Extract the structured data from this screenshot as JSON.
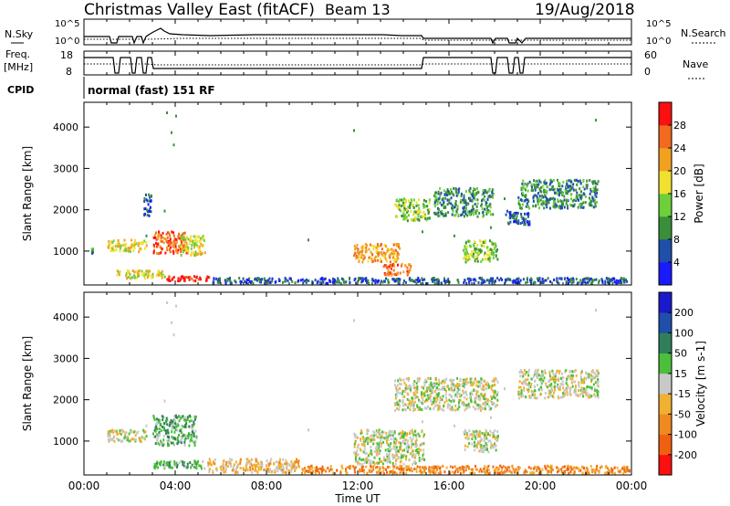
{
  "header": {
    "station": "Christmas Valley East (fitACF)",
    "beam": "Beam 13",
    "date": "19/Aug/2018"
  },
  "colors": {
    "bg": "#ffffff",
    "axis": "#000000"
  },
  "chart_data": [
    {
      "type": "line",
      "panel": "noise-sky",
      "ylabel": [
        "N.Sky",
        "N.Search"
      ],
      "y_ticks_left": [
        "10^5",
        "10^0"
      ],
      "y_ticks_right": [
        "10^5",
        "10^0"
      ],
      "xlim": [
        0,
        24
      ],
      "series": [
        {
          "name": "N.Sky",
          "style": "solid"
        },
        {
          "name": "N.Search",
          "style": "dotted"
        }
      ]
    },
    {
      "type": "line",
      "panel": "frequency-nave",
      "ylabel": [
        "Freq.",
        "[MHz]"
      ],
      "ylabel_right": "Nave",
      "y_ticks_left": [
        "18",
        "8"
      ],
      "y_ticks_right": [
        "60",
        "0"
      ],
      "xlim": [
        0,
        24
      ],
      "series": [
        {
          "name": "Freq.",
          "style": "solid"
        },
        {
          "name": "Nave",
          "style": "dotted"
        }
      ]
    },
    {
      "type": "table",
      "panel": "cpid",
      "label": "CPID",
      "value": "normal (fast) 151 RF"
    },
    {
      "type": "heatmap",
      "panel": "power",
      "xlabel": "Time UT",
      "ylabel": "Slant Range [km]",
      "xlim": [
        0,
        24
      ],
      "ylim": [
        180,
        4600
      ],
      "x_ticks": [
        "00:00",
        "04:00",
        "08:00",
        "12:00",
        "16:00",
        "20:00",
        "00:00"
      ],
      "y_ticks": [
        1000,
        2000,
        3000,
        4000
      ],
      "colorbar": {
        "label": "Power [dB]",
        "ticks": [
          "4",
          "8",
          "12",
          "16",
          "20",
          "24",
          "28"
        ],
        "colors": [
          "#1a1aff",
          "#1f4faa",
          "#3a8f3a",
          "#6dcf3a",
          "#f0e030",
          "#f2a020",
          "#f26a20",
          "#ff1010"
        ]
      },
      "regions": [
        {
          "t": [
            0.3,
            0.45
          ],
          "r": [
            900,
            1100
          ],
          "level": 2
        },
        {
          "t": [
            1.0,
            2.8
          ],
          "r": [
            950,
            1300
          ],
          "level": 4
        },
        {
          "t": [
            3.0,
            4.6
          ],
          "r": [
            900,
            1500
          ],
          "level": 6
        },
        {
          "t": [
            4.2,
            5.4
          ],
          "r": [
            850,
            1400
          ],
          "level": 4
        },
        {
          "t": [
            1.4,
            3.6
          ],
          "r": [
            300,
            560
          ],
          "level": 4
        },
        {
          "t": [
            3.6,
            5.6
          ],
          "r": [
            240,
            420
          ],
          "level": 7
        },
        {
          "t": [
            5.6,
            24.0
          ],
          "r": [
            180,
            380
          ],
          "level": 1
        },
        {
          "t": [
            11.8,
            13.9
          ],
          "r": [
            700,
            1200
          ],
          "level": 5
        },
        {
          "t": [
            13.1,
            14.4
          ],
          "r": [
            380,
            720
          ],
          "level": 6
        },
        {
          "t": [
            13.6,
            15.2
          ],
          "r": [
            1700,
            2300
          ],
          "level": 3
        },
        {
          "t": [
            15.3,
            18.0
          ],
          "r": [
            1800,
            2550
          ],
          "level": 2
        },
        {
          "t": [
            16.6,
            18.2
          ],
          "r": [
            700,
            1300
          ],
          "level": 3
        },
        {
          "t": [
            19.0,
            22.6
          ],
          "r": [
            2000,
            2750
          ],
          "level": 2
        },
        {
          "t": [
            18.4,
            19.6
          ],
          "r": [
            1600,
            2000
          ],
          "level": 1
        },
        {
          "t": [
            2.6,
            3.0
          ],
          "r": [
            1800,
            2400
          ],
          "level": 1
        }
      ]
    },
    {
      "type": "heatmap",
      "panel": "velocity",
      "xlabel": "Time UT",
      "ylabel": "Slant Range [km]",
      "xlim": [
        0,
        24
      ],
      "ylim": [
        180,
        4600
      ],
      "x_ticks": [
        "00:00",
        "04:00",
        "08:00",
        "12:00",
        "16:00",
        "20:00",
        "00:00"
      ],
      "y_ticks": [
        1000,
        2000,
        3000,
        4000
      ],
      "colorbar": {
        "label": "Velocity [m s-1]",
        "ticks": [
          "200",
          "100",
          "50",
          "15",
          "-15",
          "-50",
          "-100",
          "-200"
        ],
        "colors": [
          "#1a1acc",
          "#1f4faa",
          "#2f7f5a",
          "#4bbf3a",
          "#c8c8c8",
          "#f0b030",
          "#f08a20",
          "#f06010",
          "#ff1010"
        ]
      },
      "regions": [
        {
          "t": [
            1.0,
            2.8
          ],
          "r": [
            950,
            1300
          ],
          "level": 4
        },
        {
          "t": [
            3.0,
            5.0
          ],
          "r": [
            850,
            1650
          ],
          "level": 3
        },
        {
          "t": [
            3.0,
            5.4
          ],
          "r": [
            300,
            560
          ],
          "level": 3
        },
        {
          "t": [
            5.4,
            9.5
          ],
          "r": [
            200,
            600
          ],
          "level": 5
        },
        {
          "t": [
            9.5,
            24.0
          ],
          "r": [
            180,
            430
          ],
          "level": 6
        },
        {
          "t": [
            11.8,
            15.0
          ],
          "r": [
            400,
            1300
          ],
          "level": 4
        },
        {
          "t": [
            13.6,
            18.2
          ],
          "r": [
            1700,
            2550
          ],
          "level": 4
        },
        {
          "t": [
            16.6,
            18.2
          ],
          "r": [
            700,
            1300
          ],
          "level": 4
        },
        {
          "t": [
            19.0,
            22.6
          ],
          "r": [
            2000,
            2750
          ],
          "level": 4
        }
      ]
    }
  ]
}
